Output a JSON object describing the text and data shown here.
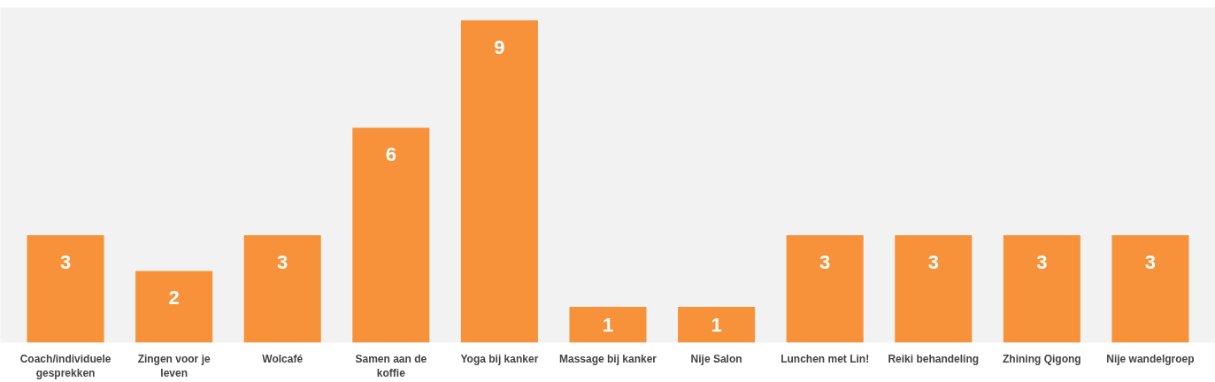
{
  "chart_data": {
    "type": "bar",
    "categories": [
      "Coach/individuele gesprekken",
      "Zingen voor je leven",
      "Wolcafé",
      "Samen aan de koffie",
      "Yoga bij kanker",
      "Massage bij kanker",
      "Nije Salon",
      "Lunchen met Lin!",
      "Reiki behandeling",
      "Zhining Qigong",
      "Nije wandelgroep"
    ],
    "values": [
      3,
      2,
      3,
      6,
      9,
      1,
      1,
      3,
      3,
      3,
      3
    ],
    "color": "#f7923a",
    "data_labels": true,
    "grid": false
  }
}
